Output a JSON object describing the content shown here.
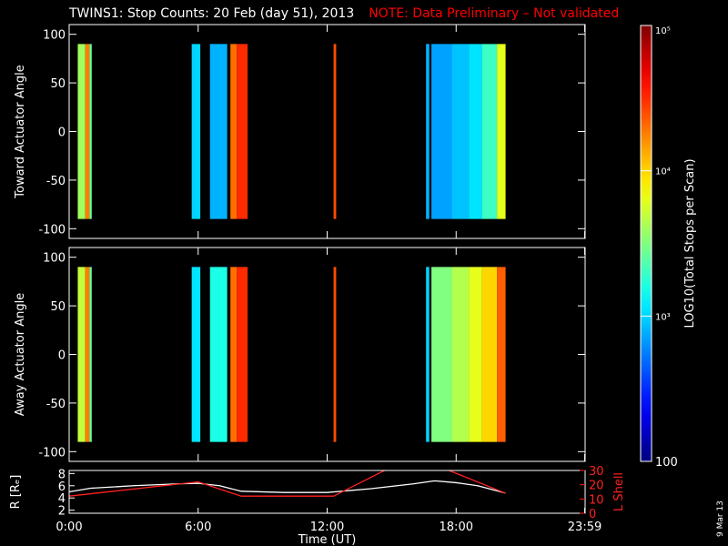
{
  "title": "TWINS1: Stop Counts: 20 Feb (day  51), 2013",
  "note": "NOTE: Data Preliminary – Not validated",
  "date_stamp": "9 Mar 13",
  "colors": {
    "text": "#ffffff",
    "note": "#ff0000",
    "lshell": "#ff2020",
    "radius": "#ffffff",
    "background": "#000000"
  },
  "chart_data": [
    {
      "type": "heatmap",
      "ylabel": "Toward Actuator Angle",
      "ylim": [
        -110,
        110
      ],
      "yticks": [
        "100",
        "50",
        "0",
        "-50",
        "-100"
      ],
      "ytick_values": [
        100,
        50,
        0,
        -50,
        -100
      ],
      "xlim_hours": [
        0,
        24
      ],
      "columns_hours_start_end_log10value": [
        [
          0.4,
          0.75,
          3.6
        ],
        [
          0.75,
          0.95,
          4.25
        ],
        [
          0.95,
          1.05,
          3.4
        ],
        [
          5.7,
          6.1,
          3.0
        ],
        [
          6.55,
          7.35,
          2.9
        ],
        [
          7.5,
          7.8,
          4.3
        ],
        [
          7.8,
          8.3,
          4.5
        ],
        [
          12.3,
          12.42,
          4.4
        ],
        [
          16.6,
          16.75,
          2.9
        ],
        [
          16.85,
          17.8,
          2.85
        ],
        [
          17.8,
          18.6,
          2.95
        ],
        [
          18.6,
          19.2,
          3.05
        ],
        [
          19.2,
          19.9,
          3.3
        ],
        [
          19.9,
          20.3,
          3.8
        ]
      ]
    },
    {
      "type": "heatmap",
      "ylabel": "Away Actuator Angle",
      "ylim": [
        -110,
        110
      ],
      "yticks": [
        "100",
        "50",
        "0",
        "-50",
        "-100"
      ],
      "ytick_values": [
        100,
        50,
        0,
        -50,
        -100
      ],
      "xlim_hours": [
        0,
        24
      ],
      "columns_hours_start_end_log10value": [
        [
          0.4,
          0.75,
          3.7
        ],
        [
          0.75,
          0.95,
          4.25
        ],
        [
          0.95,
          1.05,
          3.4
        ],
        [
          5.7,
          6.1,
          3.05
        ],
        [
          6.55,
          7.35,
          3.2
        ],
        [
          7.5,
          7.8,
          4.3
        ],
        [
          7.8,
          8.3,
          4.5
        ],
        [
          12.3,
          12.42,
          4.4
        ],
        [
          16.6,
          16.75,
          3.0
        ],
        [
          16.85,
          17.8,
          3.5
        ],
        [
          17.8,
          18.6,
          3.65
        ],
        [
          18.6,
          19.2,
          3.8
        ],
        [
          19.2,
          19.9,
          4.0
        ],
        [
          19.9,
          20.3,
          4.35
        ]
      ]
    },
    {
      "type": "line",
      "xlabel": "Time (UT)",
      "xticks": [
        "0:00",
        "6:00",
        "12:00",
        "18:00",
        "23:59"
      ],
      "xtick_hours": [
        0,
        6,
        12,
        18,
        23.98
      ],
      "left_axis": {
        "label": "R [Rₑ]",
        "ylim": [
          1.5,
          8.5
        ],
        "ticks": [
          "8",
          "6",
          "4",
          "2"
        ],
        "tick_values": [
          8,
          6,
          4,
          2
        ]
      },
      "right_axis": {
        "label": "L Shell",
        "ylim": [
          0,
          30
        ],
        "ticks": [
          "30",
          "20",
          "10",
          "0"
        ],
        "tick_values": [
          30,
          20,
          10,
          0
        ]
      },
      "series": [
        {
          "name": "R [Rₑ]",
          "axis": "left",
          "x": [
            0.0,
            1.0,
            3.0,
            5.0,
            6.0,
            7.0,
            8.0,
            10.0,
            12.0,
            14.0,
            16.0,
            17.0,
            18.0,
            19.0,
            20.3
          ],
          "y": [
            5.0,
            5.6,
            6.0,
            6.3,
            6.4,
            6.0,
            5.1,
            4.9,
            4.9,
            5.5,
            6.3,
            6.8,
            6.5,
            6.0,
            4.8
          ]
        },
        {
          "name": "L Shell",
          "axis": "right",
          "x": [
            0.0,
            6.0,
            8.0,
            12.3,
            14.8,
            17.5,
            18.0,
            20.3
          ],
          "y": [
            12,
            22,
            12,
            12,
            31,
            31,
            28,
            14
          ]
        }
      ]
    }
  ],
  "colorbar": {
    "label": "LOG10(Total Stops per Scan)",
    "log10_range": [
      2,
      5
    ],
    "ticks": [
      "10⁵",
      "10⁴",
      "10³",
      "100"
    ],
    "tick_values": [
      100000,
      10000,
      1000,
      100
    ]
  }
}
